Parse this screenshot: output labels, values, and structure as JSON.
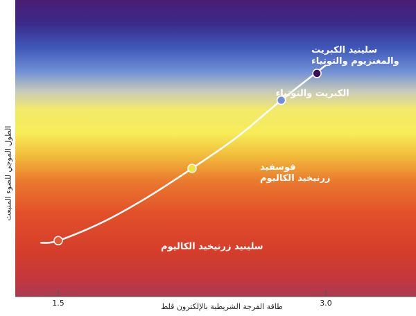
{
  "chart_data": {
    "type": "line",
    "title": "",
    "xlabel": "طاقة الفرجة الشريطية بالإلكترون ڤلط",
    "ylabel": "الطول الموجي للضوء المنبعث",
    "x_ticks": [
      "1.5",
      "3.0"
    ],
    "xlim": [
      1.5,
      3.0
    ],
    "series": [
      {
        "x": [
          1.4,
          1.5,
          1.75,
          2.0,
          2.25,
          2.5,
          2.75,
          3.0
        ],
        "y": [
          0.14,
          0.15,
          0.24,
          0.36,
          0.5,
          0.65,
          0.83,
          1.0
        ]
      }
    ],
    "points": [
      {
        "label_lines": [
          "سلينيد زرنيخيد الكاليوم"
        ],
        "x": 1.5,
        "y": 0.15,
        "color": "#e45a32"
      },
      {
        "label_lines": [
          "فوسفيد",
          "زرنيخيد الكاليوم"
        ],
        "x": 2.25,
        "y": 0.5,
        "color": "#f2e34a"
      },
      {
        "label_lines": [
          "الكبريت والتوتياء"
        ],
        "x": 2.75,
        "y": 0.83,
        "color": "#6f8fdc"
      },
      {
        "label_lines": [
          "سلينيد الكبريت",
          "والمغنزيوم والتوتياء"
        ],
        "x": 2.95,
        "y": 0.96,
        "color": "#3a0f5a"
      }
    ]
  }
}
